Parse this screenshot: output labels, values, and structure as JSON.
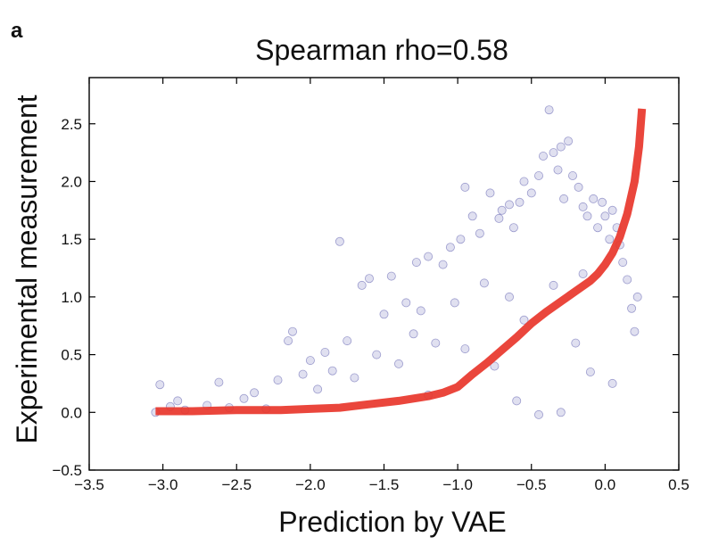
{
  "panel_label": "a",
  "chart_data": {
    "type": "scatter",
    "title": "Spearman rho=0.58",
    "xlabel": "Prediction by VAE",
    "ylabel": "Experimental measurement",
    "xlim": [
      -3.5,
      0.5
    ],
    "ylim": [
      -0.5,
      2.9
    ],
    "xticks": [
      -3.5,
      -3.0,
      -2.5,
      -2.0,
      -1.5,
      -1.0,
      -0.5,
      0.0,
      0.5
    ],
    "xtick_labels": [
      "−3.5",
      "−3.0",
      "−2.5",
      "−2.0",
      "−1.5",
      "−1.0",
      "−0.5",
      "0.0",
      "0.5"
    ],
    "yticks": [
      -0.5,
      0.0,
      0.5,
      1.0,
      1.5,
      2.0,
      2.5
    ],
    "ytick_labels": [
      "−0.5",
      "0.0",
      "0.5",
      "1.0",
      "1.5",
      "2.0",
      "2.5"
    ],
    "grid": false,
    "series": [
      {
        "type": "scatter",
        "color": "#000080",
        "points": [
          [
            -3.05,
            0.0
          ],
          [
            -3.02,
            0.24
          ],
          [
            -2.95,
            0.05
          ],
          [
            -2.9,
            0.1
          ],
          [
            -2.85,
            0.02
          ],
          [
            -2.7,
            0.06
          ],
          [
            -2.62,
            0.26
          ],
          [
            -2.55,
            0.04
          ],
          [
            -2.45,
            0.12
          ],
          [
            -2.38,
            0.17
          ],
          [
            -2.3,
            0.03
          ],
          [
            -2.22,
            0.28
          ],
          [
            -2.15,
            0.62
          ],
          [
            -2.12,
            0.7
          ],
          [
            -2.05,
            0.33
          ],
          [
            -2.0,
            0.45
          ],
          [
            -1.95,
            0.2
          ],
          [
            -1.9,
            0.52
          ],
          [
            -1.85,
            0.36
          ],
          [
            -1.8,
            1.48
          ],
          [
            -1.75,
            0.62
          ],
          [
            -1.7,
            0.3
          ],
          [
            -1.65,
            1.1
          ],
          [
            -1.6,
            1.16
          ],
          [
            -1.55,
            0.5
          ],
          [
            -1.5,
            0.85
          ],
          [
            -1.45,
            1.18
          ],
          [
            -1.4,
            0.42
          ],
          [
            -1.35,
            0.95
          ],
          [
            -1.3,
            0.68
          ],
          [
            -1.28,
            1.3
          ],
          [
            -1.25,
            0.88
          ],
          [
            -1.2,
            1.35
          ],
          [
            -1.15,
            0.6
          ],
          [
            -1.1,
            1.28
          ],
          [
            -1.05,
            1.43
          ],
          [
            -1.02,
            0.95
          ],
          [
            -0.98,
            1.5
          ],
          [
            -0.95,
            1.95
          ],
          [
            -0.9,
            1.7
          ],
          [
            -0.85,
            1.55
          ],
          [
            -0.82,
            1.12
          ],
          [
            -0.78,
            1.9
          ],
          [
            -0.72,
            1.68
          ],
          [
            -0.7,
            1.75
          ],
          [
            -0.65,
            1.8
          ],
          [
            -0.62,
            1.6
          ],
          [
            -0.58,
            1.82
          ],
          [
            -0.55,
            2.0
          ],
          [
            -0.5,
            1.9
          ],
          [
            -0.45,
            2.05
          ],
          [
            -0.42,
            2.22
          ],
          [
            -0.38,
            2.62
          ],
          [
            -0.35,
            2.25
          ],
          [
            -0.32,
            2.1
          ],
          [
            -0.3,
            2.3
          ],
          [
            -0.28,
            1.85
          ],
          [
            -0.25,
            2.35
          ],
          [
            -0.22,
            2.05
          ],
          [
            -0.18,
            1.95
          ],
          [
            -0.15,
            1.78
          ],
          [
            -0.12,
            1.7
          ],
          [
            -0.08,
            1.85
          ],
          [
            -0.05,
            1.6
          ],
          [
            -0.02,
            1.82
          ],
          [
            0.0,
            1.7
          ],
          [
            0.03,
            1.5
          ],
          [
            0.05,
            1.75
          ],
          [
            0.08,
            1.6
          ],
          [
            0.1,
            1.45
          ],
          [
            0.12,
            1.3
          ],
          [
            0.15,
            1.15
          ],
          [
            0.18,
            0.9
          ],
          [
            0.2,
            0.7
          ],
          [
            0.22,
            1.0
          ],
          [
            -0.6,
            0.1
          ],
          [
            -0.3,
            0.0
          ],
          [
            -0.1,
            0.35
          ],
          [
            0.05,
            0.25
          ],
          [
            -0.45,
            -0.02
          ],
          [
            -0.2,
            0.6
          ],
          [
            -0.75,
            0.4
          ],
          [
            -0.95,
            0.55
          ],
          [
            -1.2,
            0.15
          ],
          [
            -0.55,
            0.8
          ],
          [
            -0.35,
            1.1
          ],
          [
            -0.15,
            1.2
          ],
          [
            -0.65,
            1.0
          ]
        ]
      },
      {
        "type": "line",
        "color": "#e8362b",
        "x": [
          -3.05,
          -2.8,
          -2.5,
          -2.2,
          -2.0,
          -1.8,
          -1.6,
          -1.4,
          -1.2,
          -1.1,
          -1.0,
          -0.9,
          -0.8,
          -0.7,
          -0.6,
          -0.5,
          -0.4,
          -0.3,
          -0.2,
          -0.1,
          -0.05,
          0.0,
          0.05,
          0.1,
          0.15,
          0.2,
          0.23,
          0.25
        ],
        "y": [
          0.01,
          0.01,
          0.02,
          0.02,
          0.03,
          0.04,
          0.07,
          0.1,
          0.14,
          0.17,
          0.22,
          0.33,
          0.43,
          0.54,
          0.65,
          0.77,
          0.87,
          0.96,
          1.05,
          1.14,
          1.2,
          1.28,
          1.38,
          1.52,
          1.72,
          2.0,
          2.3,
          2.63
        ]
      }
    ]
  }
}
